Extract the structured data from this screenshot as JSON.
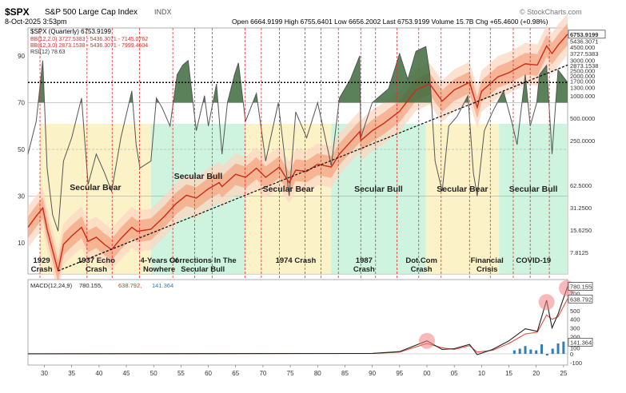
{
  "header": {
    "symbol": "$SPX",
    "index_name": "S&P 500 Large Cap Index",
    "exchange": "INDX",
    "date": "8-Oct-2025 3:53pm",
    "ohlc": "Open 6664.9199  High 6755.6401  Low 6656.2002  Last 6753.9199  Volume 15.7B  Chg +65.4600 (+0.98%)",
    "credit": "© StockCharts.com"
  },
  "legend": {
    "price": "$SPX (Quarterly) 6753.9199",
    "bb1": "BB(12,2.0) 3727.5383 - 5436.3071 - 7145.0762",
    "bb2": "BB(12,3.0) 2873.1538 - 5436.3071 - 7999.4604",
    "rsi": "RSI(12) 78.63",
    "macd_label": "MACD(12,24,9)",
    "macd_v1": "780.155,",
    "macd_v2": "638.792,",
    "macd_v3": "141.364"
  },
  "chart_data": {
    "type": "line",
    "x_start": 1927,
    "x_end": 2025.75,
    "price_scale": "log",
    "rsi_ticks": [
      "90",
      "70",
      "50",
      "30",
      "10"
    ],
    "price_ticks": [
      "6753.9199",
      "5436.3071",
      "4500.000",
      "3727.5383",
      "3000.000",
      "2873.1538",
      "2500.000",
      "2000.000",
      "1700.000",
      "1300.000",
      "1000.000",
      "500.0000",
      "250.0000",
      "62.5000",
      "31.2500",
      "15.6250",
      "7.8125"
    ],
    "price_tick_values": [
      6753.92,
      5436.31,
      4500,
      3727.54,
      3000,
      2873.15,
      2500,
      2000,
      1700,
      1300,
      1000,
      500,
      250,
      62.5,
      31.25,
      15.625,
      7.8125
    ],
    "macd_ticks": [
      "780.155",
      "700",
      "638.792",
      "500",
      "400",
      "300",
      "200",
      "141.364",
      "100",
      "0",
      "-100"
    ],
    "macd_tick_values": [
      780.155,
      700,
      638.792,
      500,
      400,
      300,
      200,
      141.364,
      100,
      0,
      -100
    ],
    "x_tick_labels": [
      "30",
      "35",
      "40",
      "45",
      "50",
      "55",
      "60",
      "65",
      "70",
      "75",
      "80",
      "85",
      "90",
      "95",
      "00",
      "05",
      "10",
      "15",
      "20",
      "25"
    ],
    "x_tick_years": [
      1930,
      1935,
      1940,
      1945,
      1950,
      1955,
      1960,
      1965,
      1970,
      1975,
      1980,
      1985,
      1990,
      1995,
      2000,
      2005,
      2010,
      2015,
      2020,
      2025
    ],
    "rsi_reference_line": 78.63,
    "price": {
      "x": [
        1927,
        1928.5,
        1929.7,
        1930.5,
        1931.5,
        1932.5,
        1933.5,
        1935,
        1936.8,
        1938,
        1939.5,
        1941,
        1942.3,
        1944,
        1946,
        1947,
        1949.5,
        1952,
        1954,
        1956,
        1957.8,
        1960,
        1962,
        1962.5,
        1965,
        1966.8,
        1968.8,
        1970.5,
        1973,
        1974.8,
        1976,
        1978,
        1980,
        1982.5,
        1984,
        1987.7,
        1987.9,
        1990,
        1992,
        1995,
        1998,
        2000.5,
        2002.8,
        2005,
        2007.8,
        2009.2,
        2010,
        2013,
        2015,
        2018,
        2020.2,
        2021.9,
        2022.9,
        2024,
        2025.75
      ],
      "y": [
        17,
        24,
        31,
        16,
        8.3,
        4.4,
        10,
        13,
        17,
        11,
        12.5,
        10,
        8.5,
        12,
        17,
        15,
        16,
        24,
        35,
        46,
        42,
        56,
        68,
        60,
        88,
        80,
        106,
        80,
        110,
        68,
        100,
        96,
        120,
        110,
        165,
        330,
        250,
        340,
        420,
        620,
        1200,
        1450,
        850,
        1200,
        1520,
        700,
        1150,
        1800,
        2050,
        2700,
        2600,
        4700,
        3700,
        4800,
        6753.92
      ]
    },
    "rsi": {
      "x": [
        1927,
        1928.5,
        1929.7,
        1930.5,
        1931.5,
        1932.5,
        1933.5,
        1935,
        1936.8,
        1938,
        1939.5,
        1941,
        1942.3,
        1944,
        1946,
        1946.8,
        1947.5,
        1949.5,
        1950.5,
        1951.5,
        1953,
        1954.3,
        1955.3,
        1956.3,
        1957.8,
        1959.3,
        1960,
        1961.5,
        1962.5,
        1963.5,
        1964.8,
        1965.5,
        1966.8,
        1968.8,
        1970.5,
        1972.8,
        1974.8,
        1976,
        1978,
        1980,
        1982.5,
        1984,
        1986,
        1987.7,
        1987.9,
        1990,
        1993,
        1995,
        1996.5,
        1998,
        1999.8,
        2000.5,
        2001.5,
        2002.8,
        2004,
        2005.5,
        2007.5,
        2008.5,
        2009.2,
        2010.5,
        2012,
        2014,
        2015.5,
        2016.5,
        2018,
        2018.9,
        2020.1,
        2020.6,
        2021.9,
        2022.9,
        2024,
        2025.75
      ],
      "y": [
        48,
        62,
        88,
        42,
        22,
        15,
        45,
        55,
        72,
        35,
        48,
        40,
        32,
        55,
        75,
        52,
        42,
        45,
        72,
        68,
        60,
        82,
        86,
        88,
        58,
        73,
        60,
        78,
        48,
        70,
        82,
        87,
        62,
        74,
        45,
        70,
        30,
        66,
        55,
        70,
        43,
        72,
        80,
        90,
        55,
        70,
        76,
        91,
        80,
        92,
        94,
        83,
        45,
        32,
        60,
        64,
        73,
        40,
        30,
        58,
        66,
        75,
        62,
        52,
        82,
        60,
        70,
        82,
        86,
        48,
        84,
        78.63
      ]
    },
    "macd": {
      "x": [
        1927,
        1990,
        1995,
        2000,
        2002.8,
        2005,
        2007.8,
        2009.2,
        2012,
        2015,
        2018,
        2020.2,
        2021.9,
        2022.9,
        2024,
        2025.75
      ],
      "macd": [
        0,
        5,
        25,
        150,
        50,
        60,
        110,
        -10,
        50,
        150,
        290,
        260,
        620,
        300,
        460,
        780.155
      ],
      "signal": [
        0,
        4,
        20,
        120,
        70,
        50,
        95,
        20,
        40,
        120,
        230,
        250,
        450,
        400,
        430,
        638.792
      ],
      "histogram_recent": [
        0,
        0,
        0,
        0,
        0,
        0,
        0,
        0,
        0,
        0,
        0,
        0,
        0,
        0,
        80,
        141.364
      ]
    },
    "cycle_markers": [
      1929.2,
      1937.8,
      1942.4,
      1947.4,
      1953.5,
      1957.5,
      1960.7,
      1966.7,
      1969.7,
      1973,
      1977.7,
      1980.6,
      1983.8,
      1987.9,
      1990.6,
      1994.5,
      1998.5,
      2002.6,
      2007.8,
      2011.6,
      2015.8,
      2018.9,
      2022.4
    ],
    "shaded_regions": [
      {
        "label": "Secular Bear",
        "from": 1929.2,
        "to": 1949.5,
        "color": "#fbf0bd"
      },
      {
        "label": "Secular Bull",
        "from": 1949.5,
        "to": 1966.8,
        "color": "#c6f2da"
      },
      {
        "label": "Secular Bear",
        "from": 1966.8,
        "to": 1982.5,
        "color": "#fbf0bd"
      },
      {
        "label": "Secular Bull",
        "from": 1982.5,
        "to": 1999.8,
        "color": "#c6f2da"
      },
      {
        "label": "Secular Bear",
        "from": 1999.8,
        "to": 2013.2,
        "color": "#fbf0bd"
      },
      {
        "label": "Secular Bull",
        "from": 2013.2,
        "to": 2025.75,
        "color": "#c6f2da"
      }
    ],
    "annotations": [
      {
        "text": "1929\nCrash",
        "x": 1929.5
      },
      {
        "text": "1937 Echo\nCrash",
        "x": 1939.5
      },
      {
        "text": "4-Years Of\nNowhere",
        "x": 1951
      },
      {
        "text": "Corrections In The\nSecular Bull",
        "x": 1959
      },
      {
        "text": "1974 Crash",
        "x": 1976
      },
      {
        "text": "1987\nCrash",
        "x": 1988.5
      },
      {
        "text": "Dot.Com\nCrash",
        "x": 1999
      },
      {
        "text": "Financial\nCrisis",
        "x": 2011
      },
      {
        "text": "COVID-19",
        "x": 2019.5
      }
    ],
    "trendline": {
      "from": [
        1932.5,
        4.4
      ],
      "to": [
        2025.75,
        2600
      ]
    },
    "colors": {
      "price": "#cc2a1a",
      "bb_inner": "#f4a582",
      "bb_outer": "#fbd7c2",
      "rsi": "#555555",
      "rsi_fill": "#3d6b3d",
      "macd": "#222222",
      "signal": "#e74c3c",
      "histogram": "#2f7fb6",
      "cycle": "#e03030"
    }
  }
}
